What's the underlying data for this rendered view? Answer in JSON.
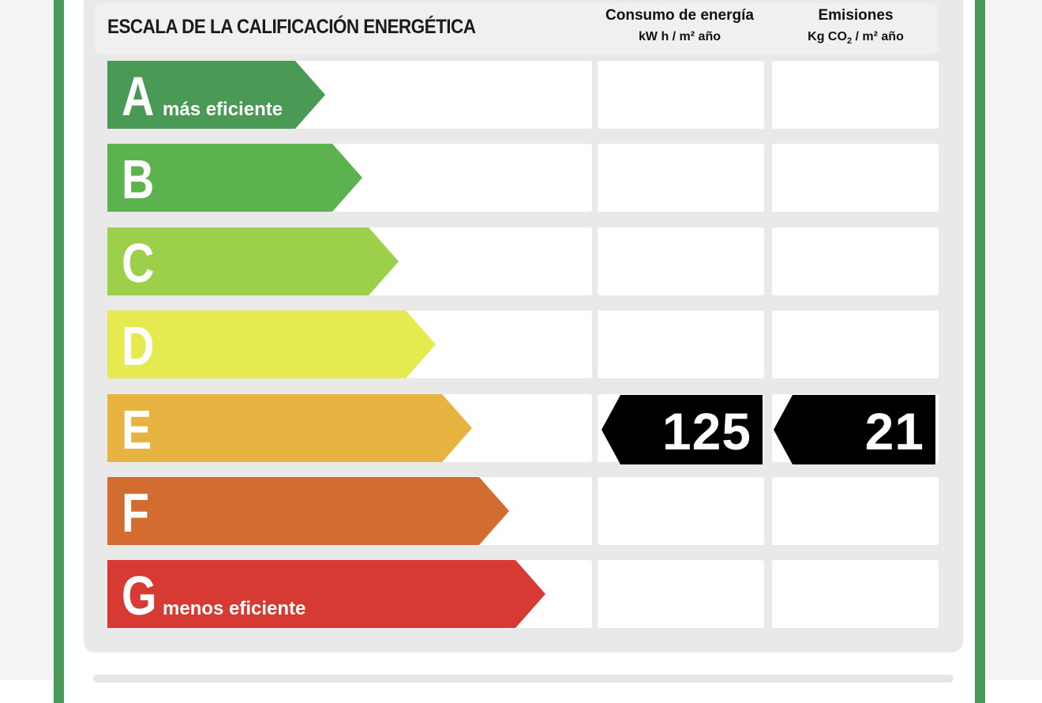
{
  "header": {
    "title": "ESCALA DE LA CALIFICACIÓN ENERGÉTICA",
    "consumo": {
      "label": "Consumo de energía",
      "unit": "kW h / m² año"
    },
    "emisiones": {
      "label": "Emisiones",
      "unit_prefix": "Kg CO",
      "unit_sub": "2",
      "unit_suffix": " / m² año"
    }
  },
  "ratings": [
    {
      "letter": "A",
      "description": "más eficiente",
      "color": "#4a9a55"
    },
    {
      "letter": "B",
      "description": "",
      "color": "#5cb24e"
    },
    {
      "letter": "C",
      "description": "",
      "color": "#9ccf4a"
    },
    {
      "letter": "D",
      "description": "",
      "color": "#e4ea50"
    },
    {
      "letter": "E",
      "description": "",
      "color": "#e7b341"
    },
    {
      "letter": "F",
      "description": "",
      "color": "#d36c30"
    },
    {
      "letter": "G",
      "description": "menos eficiente",
      "color": "#d63a33"
    }
  ],
  "result": {
    "rating": "E",
    "consumo_value": "125",
    "emisiones_value": "21",
    "badge_color": "#000000"
  }
}
